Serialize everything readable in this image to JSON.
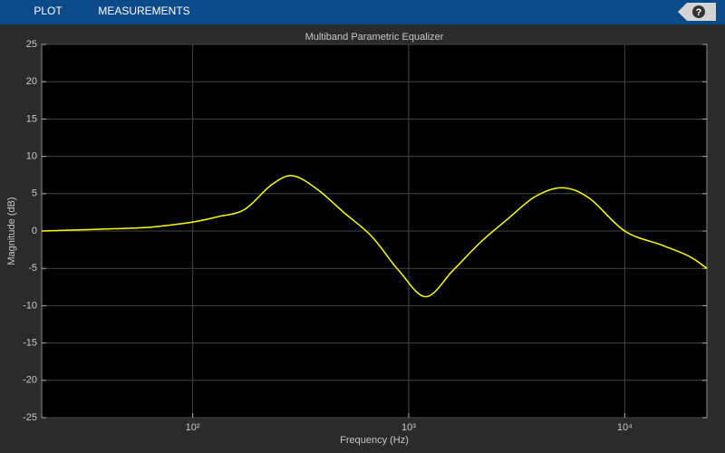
{
  "toolbar": {
    "tabs": [
      "PLOT",
      "MEASUREMENTS"
    ],
    "help": "?"
  },
  "chart_data": {
    "type": "line",
    "title": "Multiband Parametric Equalizer",
    "x_label": "Frequency (Hz)",
    "y_label": "Magnitude (dB)",
    "x": [
      20,
      54,
      73,
      100,
      130,
      174,
      232,
      290,
      377,
      500,
      673,
      900,
      1200,
      1600,
      2150,
      2870,
      3840,
      5130,
      6850,
      10000,
      14900,
      19900,
      24000
    ],
    "series": [
      {
        "name": "Magnitude",
        "color": "#ffff00",
        "values": [
          0,
          0.4,
          0.7,
          1.2,
          1.9,
          2.9,
          6.2,
          7.4,
          5.6,
          2.5,
          -0.7,
          -5.3,
          -8.8,
          -5.3,
          -1.5,
          1.6,
          4.6,
          5.8,
          4.4,
          0,
          -1.9,
          -3.4,
          -5.0
        ]
      }
    ],
    "xlim": [
      20,
      24000
    ],
    "ylim": [
      -25,
      25
    ],
    "xscale": "log",
    "xticks": [
      {
        "value": 100,
        "label": "10²"
      },
      {
        "value": 1000,
        "label": "10³"
      },
      {
        "value": 10000,
        "label": "10⁴"
      }
    ],
    "yticks": [
      -25,
      -20,
      -15,
      -10,
      -5,
      0,
      5,
      10,
      15,
      20,
      25
    ],
    "grid": true
  }
}
